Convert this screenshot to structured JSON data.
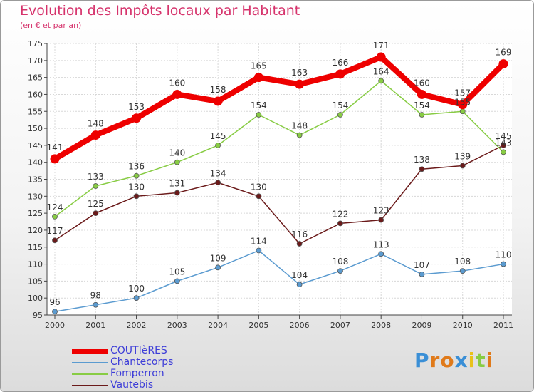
{
  "chart_data": {
    "type": "line",
    "title": "Evolution des Impôts locaux par Habitant",
    "subtitle": "(en € et par an)",
    "x": [
      "2000",
      "2001",
      "2002",
      "2003",
      "2004",
      "2005",
      "2006",
      "2007",
      "2008",
      "2009",
      "2010",
      "2011"
    ],
    "ylim": [
      95,
      175
    ],
    "yticks": [
      "95",
      "100",
      "105",
      "110",
      "115",
      "120",
      "125",
      "130",
      "135",
      "140",
      "145",
      "150",
      "155",
      "160",
      "165",
      "170",
      "175"
    ],
    "grid": true,
    "legend": "bottom-left",
    "series": [
      {
        "name": "COUTIèRES",
        "color": "#ee0000",
        "values": [
          141,
          148,
          153,
          160,
          158,
          165,
          163,
          166,
          171,
          160,
          157,
          169
        ],
        "labels": [
          "141",
          "148",
          "153",
          "160",
          "158",
          "165",
          "163",
          "166",
          "171",
          "160",
          "157",
          "169"
        ]
      },
      {
        "name": "Chantecorps",
        "color": "#5b9bd0",
        "values": [
          96,
          98,
          100,
          105,
          109,
          114,
          104,
          108,
          113,
          107,
          108,
          110
        ],
        "labels": [
          "96",
          "98",
          "100",
          "105",
          "109",
          "114",
          "104",
          "108",
          "113",
          "107",
          "108",
          "110"
        ]
      },
      {
        "name": "Fomperron",
        "color": "#88cc44",
        "values": [
          124,
          133,
          136,
          140,
          145,
          154,
          148,
          154,
          164,
          154,
          155,
          143
        ],
        "labels": [
          "124",
          "133",
          "136",
          "140",
          "145",
          "154",
          "148",
          "154",
          "164",
          "154",
          "155",
          "143"
        ]
      },
      {
        "name": "Vautebis",
        "color": "#6b1a1a",
        "values": [
          117,
          125,
          130,
          131,
          134,
          130,
          116,
          122,
          123,
          138,
          139,
          145
        ],
        "labels": [
          "117",
          "125",
          "130",
          "131",
          "134",
          "130",
          "116",
          "122",
          "123",
          "138",
          "139",
          "145"
        ]
      }
    ]
  },
  "logo": {
    "letters": [
      "P",
      "r",
      "o",
      "x",
      "i",
      "t",
      "i"
    ],
    "colors": [
      "#3a8fd6",
      "#e07a1a",
      "#e07a1a",
      "#3a8fd6",
      "#e8c21a",
      "#88cc44",
      "#e07a1a"
    ]
  }
}
